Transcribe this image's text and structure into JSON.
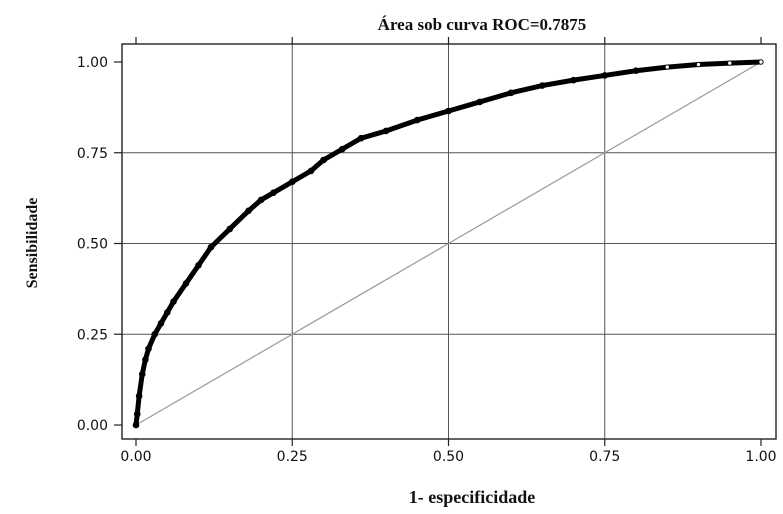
{
  "chart_data": {
    "type": "line",
    "title": "Área sob curva ROC=0.7875",
    "xlabel": "1- especificidade",
    "ylabel": "Sensibilidade",
    "xlim": [
      0,
      1
    ],
    "ylim": [
      0,
      1
    ],
    "x_ticks": [
      {
        "value": 0,
        "label": "0.00"
      },
      {
        "value": 0.25,
        "label": "0.25"
      },
      {
        "value": 0.5,
        "label": "0.50"
      },
      {
        "value": 0.75,
        "label": "0.75"
      },
      {
        "value": 1,
        "label": "1.00"
      }
    ],
    "y_ticks": [
      {
        "value": 0,
        "label": "0.00"
      },
      {
        "value": 0.25,
        "label": "0.25"
      },
      {
        "value": 0.5,
        "label": "0.50"
      },
      {
        "value": 0.75,
        "label": "0.75"
      },
      {
        "value": 1,
        "label": "1.00"
      }
    ],
    "grid": true,
    "series": [
      {
        "role": "roc-curve",
        "color": "#000000",
        "x": [
          0,
          0.002,
          0.005,
          0.01,
          0.015,
          0.02,
          0.03,
          0.04,
          0.05,
          0.06,
          0.08,
          0.1,
          0.12,
          0.15,
          0.18,
          0.2,
          0.22,
          0.25,
          0.28,
          0.3,
          0.33,
          0.36,
          0.4,
          0.45,
          0.5,
          0.55,
          0.6,
          0.65,
          0.7,
          0.75,
          0.8,
          0.85,
          0.9,
          0.95,
          1
        ],
        "y": [
          0,
          0.03,
          0.08,
          0.14,
          0.18,
          0.21,
          0.25,
          0.28,
          0.31,
          0.34,
          0.39,
          0.44,
          0.49,
          0.54,
          0.59,
          0.62,
          0.64,
          0.67,
          0.7,
          0.73,
          0.76,
          0.79,
          0.81,
          0.84,
          0.865,
          0.89,
          0.915,
          0.935,
          0.95,
          0.963,
          0.976,
          0.986,
          0.993,
          0.997,
          1
        ]
      },
      {
        "role": "reference-line",
        "color": "#999999",
        "x": [
          0,
          1
        ],
        "y": [
          0,
          1
        ]
      }
    ]
  }
}
